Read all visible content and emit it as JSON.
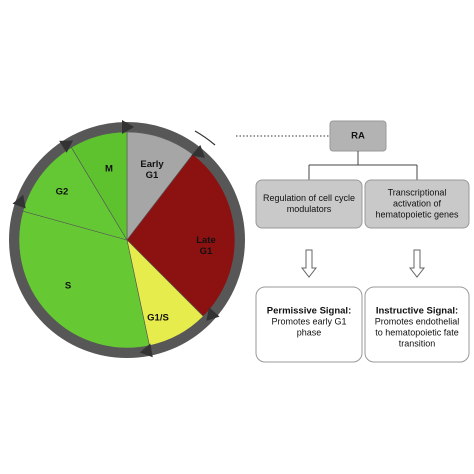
{
  "phases": {
    "early_g1": [
      "Early",
      "G1"
    ],
    "late_g1": [
      "Late",
      "G1"
    ],
    "g1s": "G1/S",
    "s": "S",
    "g2": "G2",
    "m": "M"
  },
  "ra": "RA",
  "branches": [
    {
      "lines": [
        "Regulation of cell cycle",
        "modulators"
      ],
      "signal_title": "Permissive Signal:",
      "signal_lines": [
        "Promotes early G1",
        "phase"
      ]
    },
    {
      "lines": [
        "Transcriptional",
        "activation of",
        "hematopoietic genes"
      ],
      "signal_title": "Instructive Signal:",
      "signal_lines": [
        "Promotes endothelial",
        "to hematopoietic fate",
        "transition"
      ]
    }
  ]
}
